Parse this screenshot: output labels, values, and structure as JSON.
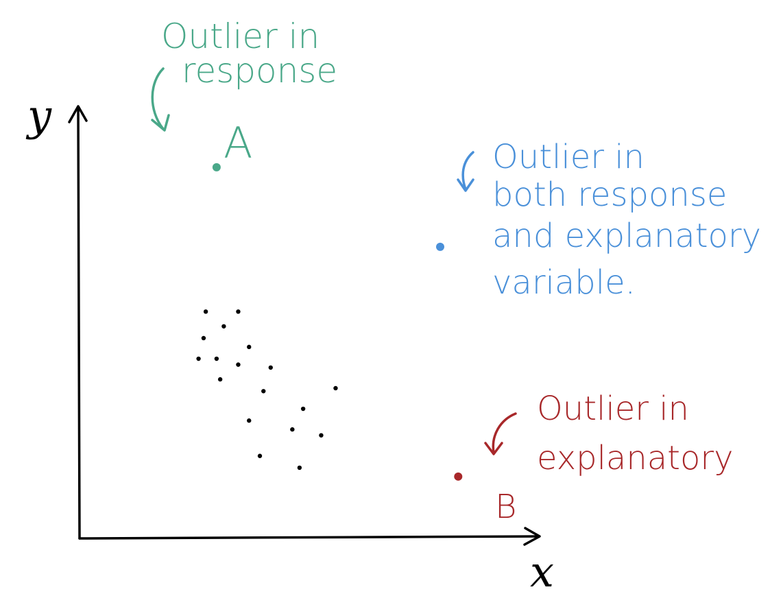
{
  "axes": {
    "y_label": "y",
    "x_label": "x",
    "axis_color": "#000000"
  },
  "annotations": {
    "outlier_a": {
      "title_line1": "Outlier in",
      "title_line2": "response",
      "point_label": "A",
      "color": "#4aa889"
    },
    "outlier_both": {
      "line1": "Outlier in",
      "line2": "both response",
      "line3": "and explanatory",
      "line4": "variable.",
      "color": "#4a90d9"
    },
    "outlier_b": {
      "line1": "Outlier in",
      "line2": "explanatory",
      "point_label": "B",
      "color": "#a8282a"
    }
  },
  "chart_data": {
    "type": "scatter",
    "cluster_color": "#000000",
    "cluster_points": [
      [
        1.75,
        3.85
      ],
      [
        2.2,
        3.85
      ],
      [
        2.0,
        3.6
      ],
      [
        1.72,
        3.4
      ],
      [
        2.35,
        3.25
      ],
      [
        1.65,
        3.05
      ],
      [
        1.9,
        3.05
      ],
      [
        2.2,
        2.95
      ],
      [
        2.65,
        2.9
      ],
      [
        1.95,
        2.7
      ],
      [
        2.55,
        2.5
      ],
      [
        3.1,
        2.2
      ],
      [
        3.55,
        2.55
      ],
      [
        2.35,
        2.0
      ],
      [
        2.95,
        1.85
      ],
      [
        3.35,
        1.75
      ],
      [
        2.5,
        1.4
      ],
      [
        3.05,
        1.2
      ]
    ],
    "outliers": [
      {
        "label": "A",
        "x": 1.9,
        "y": 6.3,
        "color": "#4aa889"
      },
      {
        "label": "",
        "x": 5.0,
        "y": 4.95,
        "color": "#4a90d9"
      },
      {
        "label": "B",
        "x": 5.25,
        "y": 1.05,
        "color": "#a8282a"
      }
    ],
    "xlim": [
      0,
      6.35
    ],
    "ylim": [
      0,
      7.3
    ]
  }
}
